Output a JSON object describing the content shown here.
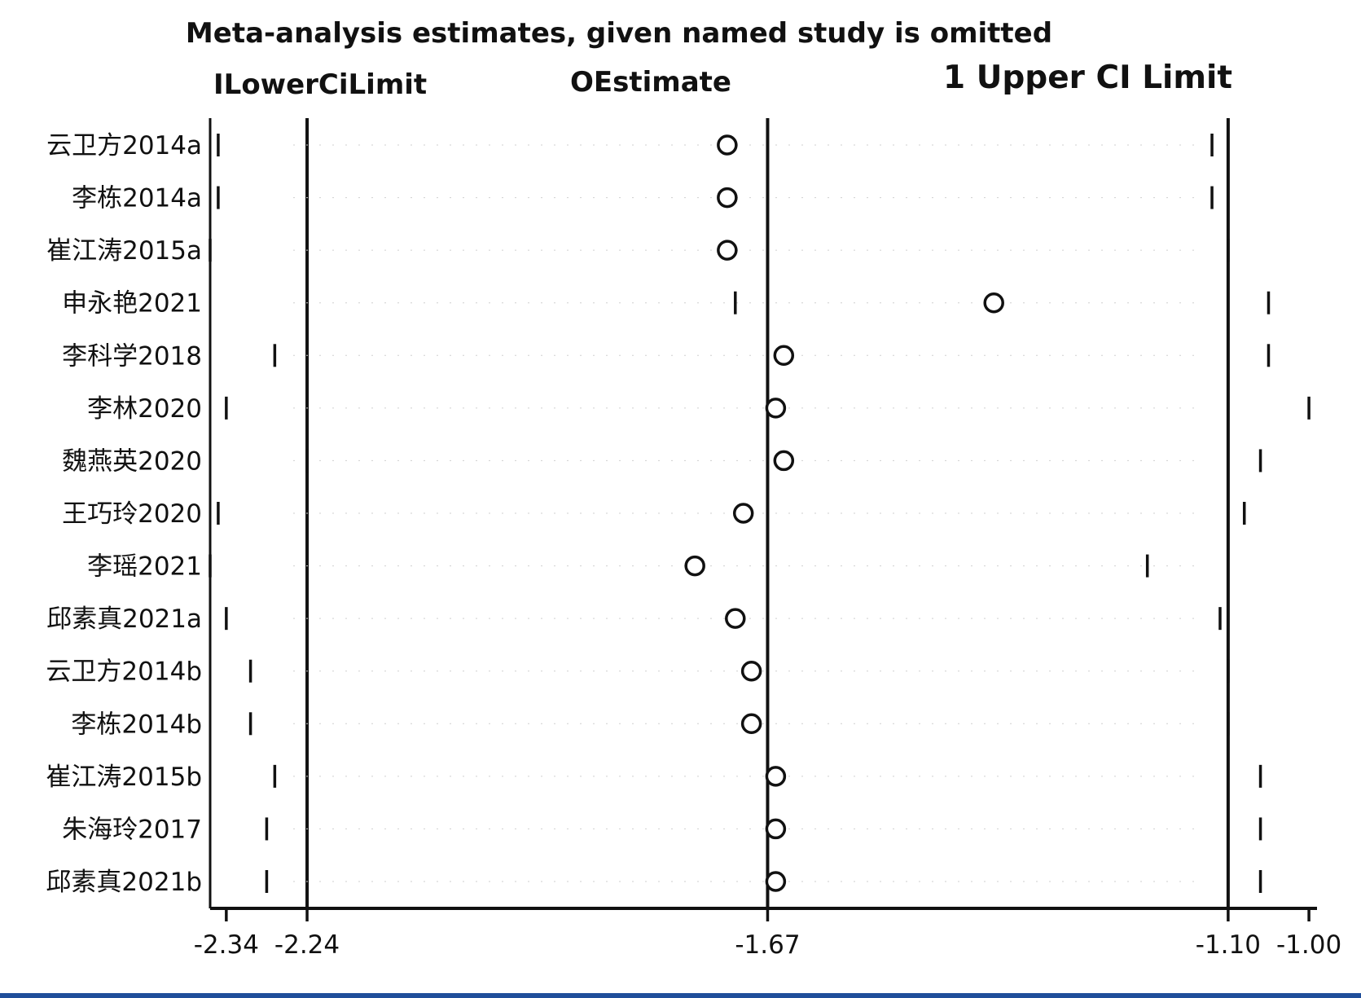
{
  "chart_data": {
    "type": "scatter",
    "title": "Meta-analysis estimates, given named study is omitted",
    "legend": {
      "lower": "ILowerCiLimit",
      "estimate": "OEstimate",
      "upper": "1 Upper CI Limit"
    },
    "xlim": [
      -2.36,
      -0.99
    ],
    "xticks": [
      {
        "value": -2.34,
        "label": "-2.34"
      },
      {
        "value": -2.24,
        "label": "-2.24"
      },
      {
        "value": -1.67,
        "label": "-1.67"
      },
      {
        "value": -1.1,
        "label": "-1.10"
      },
      {
        "value": -1.0,
        "label": "-1.00"
      }
    ],
    "reference_lines": [
      -2.24,
      -1.67,
      -1.1
    ],
    "studies": [
      {
        "name": "云卫方2014a",
        "lower": -2.35,
        "estimate": -1.72,
        "upper": -1.12
      },
      {
        "name": "李栋2014a",
        "lower": -2.35,
        "estimate": -1.72,
        "upper": -1.12
      },
      {
        "name": "崔江涛2015a",
        "lower": -2.36,
        "estimate": -1.72,
        "upper": -1.1
      },
      {
        "name": "申永艳2021",
        "lower": -1.71,
        "estimate": -1.39,
        "upper": -1.05
      },
      {
        "name": "李科学2018",
        "lower": -2.28,
        "estimate": -1.65,
        "upper": -1.05
      },
      {
        "name": "李林2020",
        "lower": -2.34,
        "estimate": -1.66,
        "upper": -1.0
      },
      {
        "name": "魏燕英2020",
        "lower": -2.24,
        "estimate": -1.65,
        "upper": -1.06
      },
      {
        "name": "王巧玲2020",
        "lower": -2.35,
        "estimate": -1.7,
        "upper": -1.08
      },
      {
        "name": "李瑶2021",
        "lower": -2.36,
        "estimate": -1.76,
        "upper": -1.2
      },
      {
        "name": "邱素真2021a",
        "lower": -2.34,
        "estimate": -1.71,
        "upper": -1.11
      },
      {
        "name": "云卫方2014b",
        "lower": -2.31,
        "estimate": -1.69,
        "upper": -1.1
      },
      {
        "name": "李栋2014b",
        "lower": -2.31,
        "estimate": -1.69,
        "upper": -1.1
      },
      {
        "name": "崔江涛2015b",
        "lower": -2.28,
        "estimate": -1.66,
        "upper": -1.06
      },
      {
        "name": "朱海玲2017",
        "lower": -2.29,
        "estimate": -1.66,
        "upper": -1.06
      },
      {
        "name": "邱素真2021b",
        "lower": -2.29,
        "estimate": -1.66,
        "upper": -1.06
      }
    ]
  }
}
